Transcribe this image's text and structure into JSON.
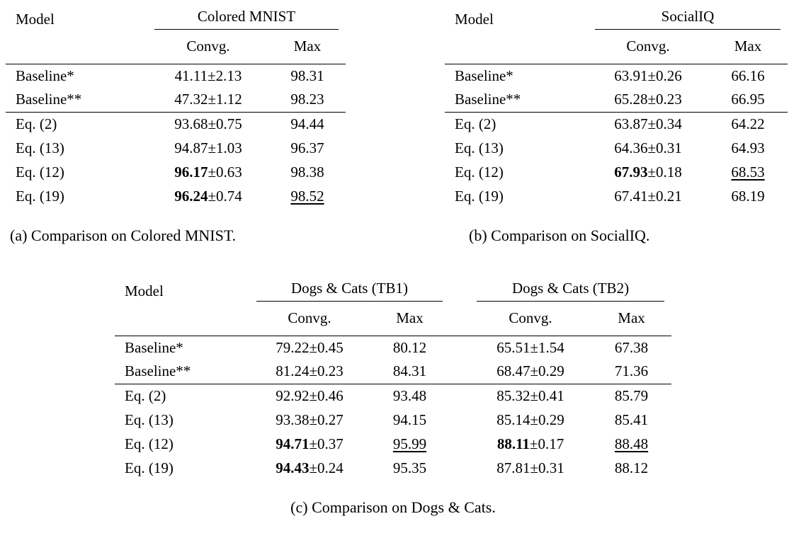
{
  "tables": [
    {
      "model_header": "Model",
      "groups": [
        {
          "label": "Colored MNIST",
          "subcols": [
            "Convg.",
            "Max"
          ]
        }
      ],
      "rows": [
        {
          "model": "Baseline*",
          "cells": [
            {
              "mean": "41.11",
              "std": "±2.13"
            },
            {
              "value": "98.31"
            }
          ]
        },
        {
          "model": "Baseline**",
          "rule_below": true,
          "cells": [
            {
              "mean": "47.32",
              "std": "±1.12"
            },
            {
              "value": "98.23"
            }
          ]
        },
        {
          "model": "Eq. (2)",
          "cells": [
            {
              "mean": "93.68",
              "std": "±0.75"
            },
            {
              "value": "94.44"
            }
          ]
        },
        {
          "model": "Eq. (13)",
          "cells": [
            {
              "mean": "94.87",
              "std": "±1.03"
            },
            {
              "value": "96.37"
            }
          ]
        },
        {
          "model": "Eq. (12)",
          "cells": [
            {
              "mean": "96.17",
              "std": "±0.63",
              "bold": true
            },
            {
              "value": "98.38"
            }
          ]
        },
        {
          "model": "Eq. (19)",
          "cells": [
            {
              "mean": "96.24",
              "std": "±0.74",
              "bold": true
            },
            {
              "value": "98.52",
              "underline": true
            }
          ]
        }
      ],
      "caption": "(a) Comparison on Colored MNIST."
    },
    {
      "model_header": "Model",
      "groups": [
        {
          "label": "SocialIQ",
          "subcols": [
            "Convg.",
            "Max"
          ]
        }
      ],
      "rows": [
        {
          "model": "Baseline*",
          "cells": [
            {
              "mean": "63.91",
              "std": "±0.26"
            },
            {
              "value": "66.16"
            }
          ]
        },
        {
          "model": "Baseline**",
          "rule_below": true,
          "cells": [
            {
              "mean": "65.28",
              "std": "±0.23"
            },
            {
              "value": "66.95"
            }
          ]
        },
        {
          "model": "Eq. (2)",
          "cells": [
            {
              "mean": "63.87",
              "std": "±0.34"
            },
            {
              "value": "64.22"
            }
          ]
        },
        {
          "model": "Eq. (13)",
          "cells": [
            {
              "mean": "64.36",
              "std": "±0.31"
            },
            {
              "value": "64.93"
            }
          ]
        },
        {
          "model": "Eq. (12)",
          "cells": [
            {
              "mean": "67.93",
              "std": "±0.18",
              "bold": true
            },
            {
              "value": "68.53",
              "underline": true
            }
          ]
        },
        {
          "model": "Eq. (19)",
          "cells": [
            {
              "mean": "67.41",
              "std": "±0.21"
            },
            {
              "value": "68.19"
            }
          ]
        }
      ],
      "caption": "(b) Comparison on SocialIQ."
    },
    {
      "model_header": "Model",
      "groups": [
        {
          "label": "Dogs & Cats (TB1)",
          "subcols": [
            "Convg.",
            "Max"
          ]
        },
        {
          "label": "Dogs & Cats (TB2)",
          "subcols": [
            "Convg.",
            "Max"
          ]
        }
      ],
      "rows": [
        {
          "model": "Baseline*",
          "cells": [
            {
              "mean": "79.22",
              "std": "±0.45"
            },
            {
              "value": "80.12"
            },
            {
              "mean": "65.51",
              "std": "±1.54"
            },
            {
              "value": "67.38"
            }
          ]
        },
        {
          "model": "Baseline**",
          "rule_below": true,
          "cells": [
            {
              "mean": "81.24",
              "std": "±0.23"
            },
            {
              "value": "84.31"
            },
            {
              "mean": "68.47",
              "std": "±0.29"
            },
            {
              "value": "71.36"
            }
          ]
        },
        {
          "model": "Eq. (2)",
          "cells": [
            {
              "mean": "92.92",
              "std": "±0.46"
            },
            {
              "value": "93.48"
            },
            {
              "mean": "85.32",
              "std": "±0.41"
            },
            {
              "value": "85.79"
            }
          ]
        },
        {
          "model": "Eq. (13)",
          "cells": [
            {
              "mean": "93.38",
              "std": "±0.27"
            },
            {
              "value": "94.15"
            },
            {
              "mean": "85.14",
              "std": "±0.29"
            },
            {
              "value": "85.41"
            }
          ]
        },
        {
          "model": "Eq. (12)",
          "cells": [
            {
              "mean": "94.71",
              "std": "±0.37",
              "bold": true
            },
            {
              "value": "95.99",
              "underline": true
            },
            {
              "mean": "88.11",
              "std": "±0.17",
              "bold": true
            },
            {
              "value": "88.48",
              "underline": true
            }
          ]
        },
        {
          "model": "Eq. (19)",
          "cells": [
            {
              "mean": "94.43",
              "std": "±0.24",
              "bold": true
            },
            {
              "value": "95.35"
            },
            {
              "mean": "87.81",
              "std": "±0.31"
            },
            {
              "value": "88.12"
            }
          ]
        }
      ],
      "caption": "(c) Comparison on Dogs & Cats."
    }
  ]
}
